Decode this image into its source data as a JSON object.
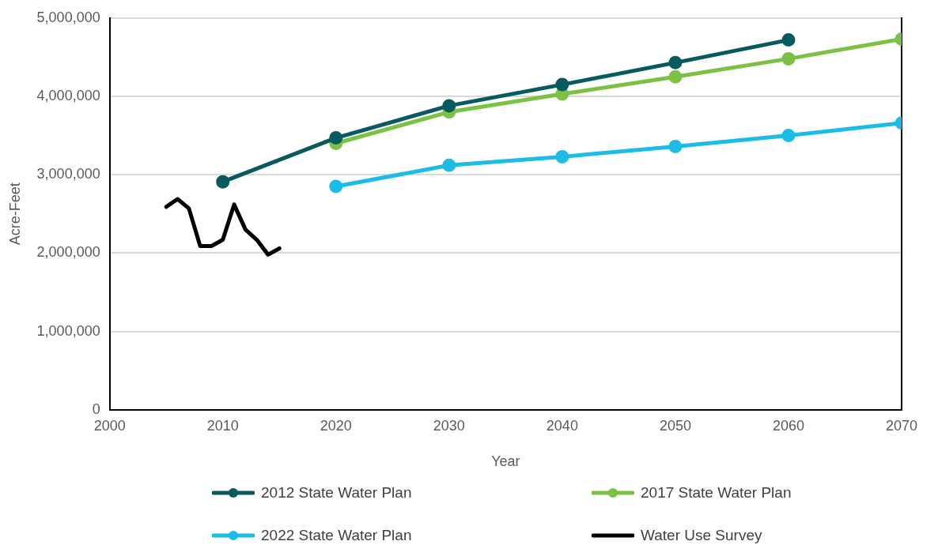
{
  "chart_data": {
    "type": "line",
    "xlabel": "Year",
    "ylabel": "Acre-Feet",
    "xlim": [
      2000,
      2070
    ],
    "xticks": [
      2000,
      2010,
      2020,
      2030,
      2040,
      2050,
      2060,
      2070
    ],
    "ylim": [
      0,
      5000000
    ],
    "yticks": [
      {
        "value": 0,
        "label": "0"
      },
      {
        "value": 1000000,
        "label": "1,000,000"
      },
      {
        "value": 2000000,
        "label": "2,000,000"
      },
      {
        "value": 3000000,
        "label": "3,000,000"
      },
      {
        "value": 4000000,
        "label": "4,000,000"
      },
      {
        "value": 5000000,
        "label": "5,000,000"
      }
    ],
    "grid": "y",
    "legend": "bottom",
    "line_style": "solid",
    "series": [
      {
        "name": "2012 State Water Plan",
        "color": "#075a5f",
        "marker": "circle",
        "x": [
          2010,
          2020,
          2030,
          2040,
          2050,
          2060
        ],
        "values": [
          2910000,
          3470000,
          3880000,
          4150000,
          4430000,
          4720000
        ]
      },
      {
        "name": "2017 State Water Plan",
        "color": "#7bc143",
        "marker": "circle",
        "x": [
          2020,
          2030,
          2040,
          2050,
          2060,
          2070
        ],
        "values": [
          3400000,
          3800000,
          4030000,
          4250000,
          4480000,
          4730000
        ]
      },
      {
        "name": "2022 State Water Plan",
        "color": "#1bbce6",
        "marker": "circle",
        "x": [
          2020,
          2030,
          2040,
          2050,
          2060,
          2070
        ],
        "values": [
          2850000,
          3120000,
          3230000,
          3360000,
          3500000,
          3660000
        ]
      },
      {
        "name": "Water Use Survey",
        "color": "#000000",
        "marker": "none",
        "x": [
          2005,
          2006,
          2007,
          2008,
          2009,
          2010,
          2011,
          2012,
          2013,
          2014,
          2015
        ],
        "values": [
          2590000,
          2690000,
          2570000,
          2090000,
          2090000,
          2170000,
          2620000,
          2300000,
          2170000,
          1980000,
          2060000
        ]
      }
    ]
  }
}
